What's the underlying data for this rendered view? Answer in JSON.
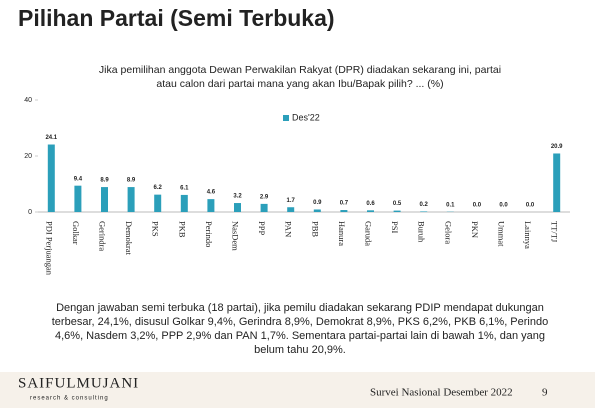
{
  "slide_title": "Pilihan Partai (Semi Terbuka)",
  "chart_data": {
    "type": "bar",
    "title": [
      "Jika pemilihan anggota Dewan Perwakilan Rakyat (DPR) diadakan sekarang ini, partai",
      "atau calon dari partai mana yang akan Ibu/Bapak pilih?  ... (%)"
    ],
    "categories": [
      "PDI Perjuangan",
      "Golkar",
      "Gerindra",
      "Demokrat",
      "PKS",
      "PKB",
      "Perindo",
      "NasDem",
      "PPP",
      "PAN",
      "PBB",
      "Hanura",
      "Garuda",
      "PSI",
      "Buruh",
      "Gelora",
      "PKN",
      "Ummat",
      "Lainnya",
      "TT/TJ"
    ],
    "series": [
      {
        "name": "Des'22",
        "color": "#2b9fba",
        "values": [
          24.1,
          9.4,
          8.9,
          8.9,
          6.2,
          6.1,
          4.6,
          3.2,
          2.9,
          1.7,
          0.9,
          0.7,
          0.6,
          0.5,
          0.2,
          0.1,
          0.0,
          0.0,
          0.0,
          20.9
        ],
        "value_labels": [
          "24.1",
          "9.4",
          "8.9",
          "8.9",
          "6.2",
          "6.1",
          "4.6",
          "3.2",
          "2.9",
          "1.7",
          "0.9",
          "0.7",
          "0.6",
          "0.5",
          "0.2",
          "0.1",
          "0.0",
          "0.0",
          "0.0",
          "20.9"
        ]
      }
    ],
    "ylim": [
      0,
      40
    ],
    "yticks": [
      0,
      20,
      40
    ],
    "grid": false,
    "legend": "top"
  },
  "summary": [
    "Dengan jawaban semi terbuka (18 partai), jika pemilu diadakan sekarang PDIP mendapat dukungan",
    "terbesar, 24,1%, disusul Golkar 9,4%, Gerindra 8,9%, Demokrat 8,9%, PKS 6,2%, PKB 6,1%, Perindo",
    "4,6%, Nasdem 3,2%, PPP 2,9% dan PAN 1,7%. Sementara partai-partai lain di bawah 1%, dan yang",
    "belum tahu 20,9%."
  ],
  "footer": {
    "logo": "SAIFULMUJANI",
    "logo_sub": "research & consulting",
    "survey": "Survei Nasional Desember 2022",
    "page": 9
  }
}
